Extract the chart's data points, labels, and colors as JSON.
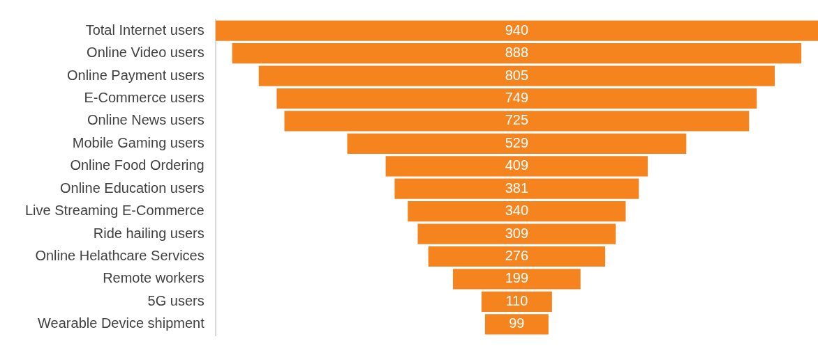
{
  "chart_data": {
    "type": "other",
    "categories": [
      "Total Internet users",
      "Online Video users",
      "Online Payment users",
      "E-Commerce users",
      "Online News users",
      "Mobile Gaming users",
      "Online Food Ordering",
      "Online Education users",
      "Live Streaming E-Commerce",
      "Ride hailing users",
      "Online Helathcare Services",
      "Remote workers",
      "5G users",
      "Wearable Device shipment"
    ],
    "values": [
      940,
      888,
      805,
      749,
      725,
      529,
      409,
      381,
      340,
      309,
      276,
      199,
      110,
      99
    ],
    "color": "#f5841f",
    "data_labels": true
  }
}
